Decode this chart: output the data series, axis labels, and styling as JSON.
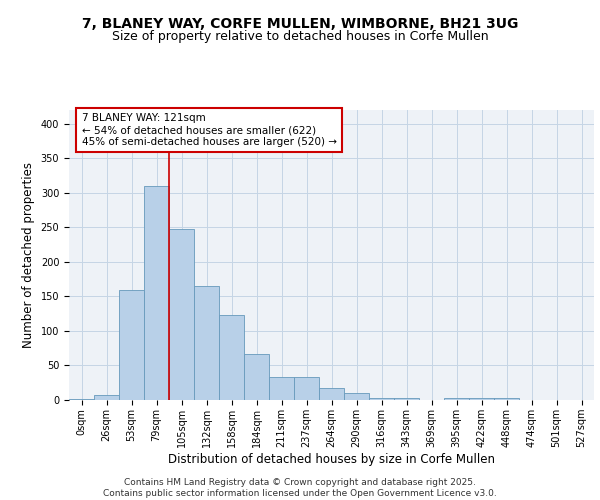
{
  "title_line1": "7, BLANEY WAY, CORFE MULLEN, WIMBORNE, BH21 3UG",
  "title_line2": "Size of property relative to detached houses in Corfe Mullen",
  "xlabel": "Distribution of detached houses by size in Corfe Mullen",
  "ylabel": "Number of detached properties",
  "bins": [
    "0sqm",
    "26sqm",
    "53sqm",
    "79sqm",
    "105sqm",
    "132sqm",
    "158sqm",
    "184sqm",
    "211sqm",
    "237sqm",
    "264sqm",
    "290sqm",
    "316sqm",
    "343sqm",
    "369sqm",
    "395sqm",
    "422sqm",
    "448sqm",
    "474sqm",
    "501sqm",
    "527sqm"
  ],
  "bar_heights": [
    2,
    7,
    160,
    310,
    247,
    165,
    123,
    67,
    33,
    33,
    17,
    10,
    3,
    3,
    0,
    3,
    3,
    3,
    0,
    0,
    0
  ],
  "bar_color": "#b8d0e8",
  "bar_edge_color": "#6699bb",
  "grid_color": "#c5d5e5",
  "bg_color": "#eef2f7",
  "annotation_text": "7 BLANEY WAY: 121sqm\n← 54% of detached houses are smaller (622)\n45% of semi-detached houses are larger (520) →",
  "annotation_box_color": "#ffffff",
  "annotation_box_edge": "#cc0000",
  "vline_x_pos": 3.5,
  "vline_color": "#cc0000",
  "ylim": [
    0,
    420
  ],
  "yticks": [
    0,
    50,
    100,
    150,
    200,
    250,
    300,
    350,
    400
  ],
  "footer": "Contains HM Land Registry data © Crown copyright and database right 2025.\nContains public sector information licensed under the Open Government Licence v3.0.",
  "title_fontsize": 10,
  "subtitle_fontsize": 9,
  "axis_label_fontsize": 8.5,
  "tick_fontsize": 7,
  "annotation_fontsize": 7.5,
  "footer_fontsize": 6.5
}
